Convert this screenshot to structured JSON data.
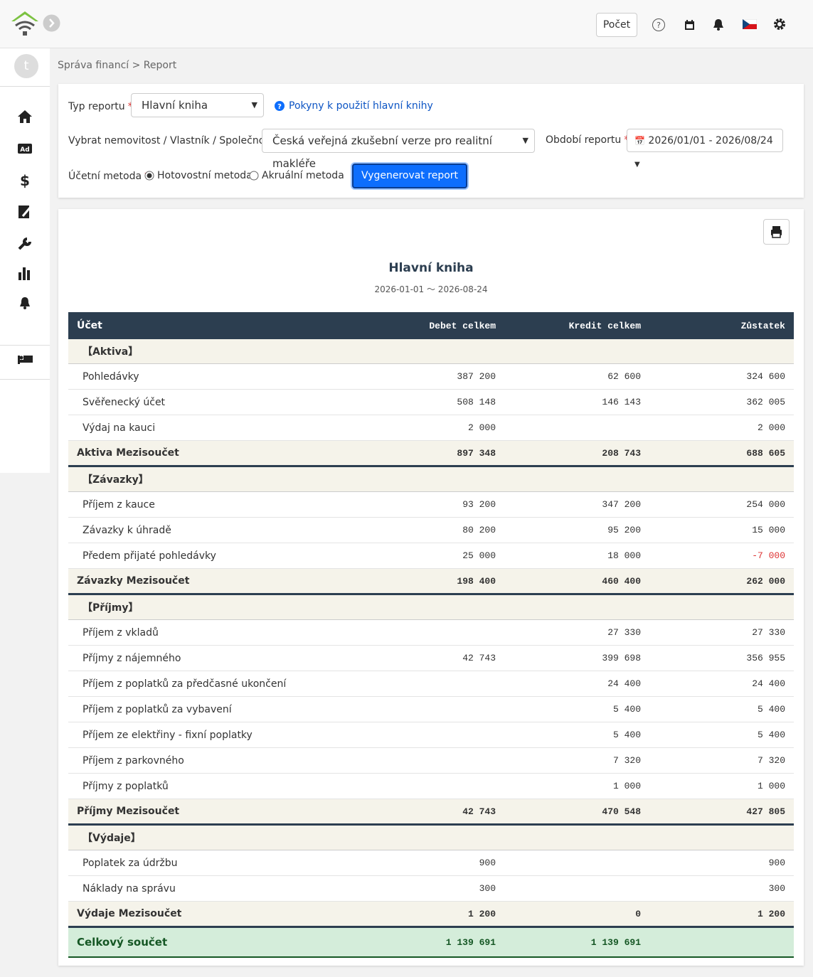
{
  "header": {
    "count_button": "Počet"
  },
  "sidebar": {
    "avatar": "t"
  },
  "breadcrumb": "Správa financí > Report",
  "form": {
    "required_mark": "*",
    "report_type_label": "Typ reportu",
    "report_type_value": "Hlavní kniha",
    "help_link": "Pokyny k použití hlavní knihy",
    "property_label": "Vybrat nemovitost / Vlastník / Společnost",
    "property_value": "Česká veřejná zkušební verze pro realitní makléře",
    "period_label": "Období reportu",
    "period_value": "2026/01/01 - 2026/08/24",
    "method_label": "Účetní metoda",
    "method_options": [
      "Hotovostní metoda",
      "Akruální metoda"
    ],
    "generate_button": "Vygenerovat report"
  },
  "report": {
    "title": "Hlavní kniha",
    "period": "2026-01-01 〜 2026-08-24",
    "columns": [
      "Účet",
      "Debet celkem",
      "Kredit celkem",
      "Zůstatek"
    ],
    "sections": [
      {
        "title": "【Aktiva】",
        "rows": [
          {
            "account": "Pohledávky",
            "debit": "387 200",
            "credit": "62 600",
            "balance": "324 600"
          },
          {
            "account": "Svěřenecký účet",
            "debit": "508 148",
            "credit": "146 143",
            "balance": "362 005"
          },
          {
            "account": "Výdaj na kauci",
            "debit": "2 000",
            "balance": "2 000"
          }
        ],
        "subtotal": {
          "account": "Aktiva Mezisoučet",
          "debit": "897 348",
          "credit": "208 743",
          "balance": "688 605"
        }
      },
      {
        "title": "【Závazky】",
        "rows": [
          {
            "account": "Příjem z kauce",
            "debit": "93 200",
            "credit": "347 200",
            "balance": "254 000"
          },
          {
            "account": "Závazky k úhradě",
            "debit": "80 200",
            "credit": "95 200",
            "balance": "15 000"
          },
          {
            "account": "Předem přijaté pohledávky",
            "debit": "25 000",
            "credit": "18 000",
            "balance": "-7 000"
          }
        ],
        "subtotal": {
          "account": "Závazky Mezisoučet",
          "debit": "198 400",
          "credit": "460 400",
          "balance": "262 000"
        }
      },
      {
        "title": "【Příjmy】",
        "rows": [
          {
            "account": "Příjem z vkladů",
            "credit": "27 330",
            "balance": "27 330"
          },
          {
            "account": "Příjmy z nájemného",
            "debit": "42 743",
            "credit": "399 698",
            "balance": "356 955"
          },
          {
            "account": "Příjem z poplatků za předčasné ukončení",
            "credit": "24 400",
            "balance": "24 400"
          },
          {
            "account": "Příjem z poplatků za vybavení",
            "credit": "5 400",
            "balance": "5 400"
          },
          {
            "account": "Příjem ze elektřiny - fixní poplatky",
            "credit": "5 400",
            "balance": "5 400"
          },
          {
            "account": "Příjem z parkovného",
            "credit": "7 320",
            "balance": "7 320"
          },
          {
            "account": "Příjmy z poplatků",
            "credit": "1 000",
            "balance": "1 000"
          }
        ],
        "subtotal": {
          "account": "Příjmy Mezisoučet",
          "debit": "42 743",
          "credit": "470 548",
          "balance": "427 805"
        }
      },
      {
        "title": "【Výdaje】",
        "rows": [
          {
            "account": "Poplatek za údržbu",
            "debit": "900",
            "balance": "900"
          },
          {
            "account": "Náklady na správu",
            "debit": "300",
            "balance": "300"
          }
        ],
        "subtotal": {
          "account": "Výdaje Mezisoučet",
          "debit": "1 200",
          "credit": "0",
          "balance": "1 200"
        }
      }
    ],
    "total": {
      "account": "Celkový součet",
      "debit": "1 139 691",
      "credit": "1 139 691"
    }
  }
}
